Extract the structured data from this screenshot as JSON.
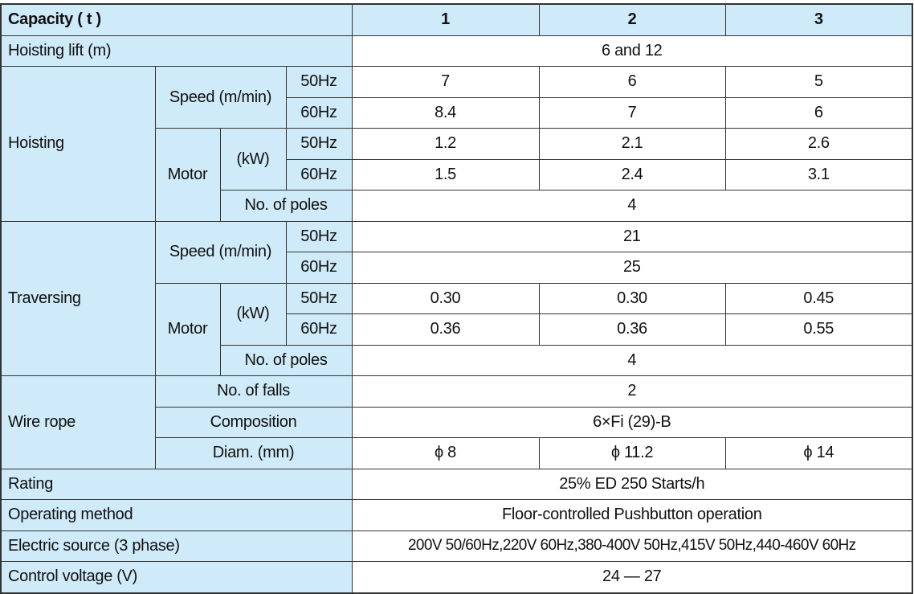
{
  "header": {
    "label": "Capacity ( t )",
    "capacities": [
      "1",
      "2",
      "3"
    ]
  },
  "hoisting_lift": {
    "label": "Hoisting lift (m)",
    "value": "6 and 12"
  },
  "hoisting": {
    "label": "Hoisting",
    "speed": {
      "label": "Speed (m/min)",
      "rows": [
        {
          "freq": "50Hz",
          "values": [
            "7",
            "6",
            "5"
          ]
        },
        {
          "freq": "60Hz",
          "values": [
            "8.4",
            "7",
            "6"
          ]
        }
      ]
    },
    "motor": {
      "label": "Motor",
      "unit": "(kW)",
      "rows": [
        {
          "freq": "50Hz",
          "values": [
            "1.2",
            "2.1",
            "2.6"
          ]
        },
        {
          "freq": "60Hz",
          "values": [
            "1.5",
            "2.4",
            "3.1"
          ]
        }
      ]
    },
    "poles": {
      "label": "No. of poles",
      "value": "4"
    }
  },
  "traversing": {
    "label": "Traversing",
    "speed": {
      "label": "Speed (m/min)",
      "rows": [
        {
          "freq": "50Hz",
          "value": "21"
        },
        {
          "freq": "60Hz",
          "value": "25"
        }
      ]
    },
    "motor": {
      "label": "Motor",
      "unit": "(kW)",
      "rows": [
        {
          "freq": "50Hz",
          "values": [
            "0.30",
            "0.30",
            "0.45"
          ]
        },
        {
          "freq": "60Hz",
          "values": [
            "0.36",
            "0.36",
            "0.55"
          ]
        }
      ]
    },
    "poles": {
      "label": "No. of poles",
      "value": "4"
    }
  },
  "wire_rope": {
    "label": "Wire rope",
    "falls": {
      "label": "No. of falls",
      "value": "2"
    },
    "composition": {
      "label": "Composition",
      "value": "6×Fi (29)-B"
    },
    "diameter": {
      "label": "Diam. (mm)",
      "values": [
        "ϕ 8",
        "ϕ 11.2",
        "ϕ 14"
      ]
    }
  },
  "rating": {
    "label": "Rating",
    "value": "25% ED 250 Starts/h"
  },
  "operating_method": {
    "label": "Operating method",
    "value": "Floor-controlled Pushbutton operation"
  },
  "electric_source": {
    "label": "Electric source (3 phase)",
    "value": "200V 50/60Hz,220V 60Hz,380-400V 50Hz,415V 50Hz,440-460V 60Hz"
  },
  "control_voltage": {
    "label": "Control voltage (V)",
    "value": "24 — 27"
  }
}
